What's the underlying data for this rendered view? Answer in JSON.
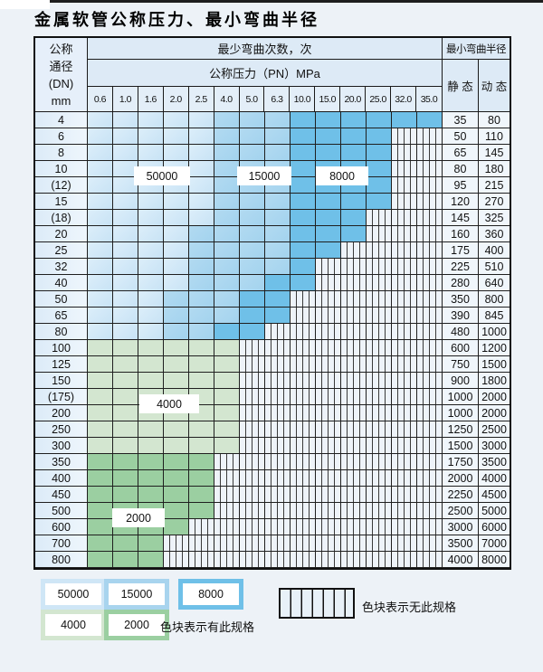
{
  "title": "金属软管公称压力、最小弯曲半径",
  "table": {
    "corner_lines": [
      "公称",
      "通径",
      "(DN)",
      "mm"
    ],
    "bend_times_header": "最少弯曲次数，次",
    "pressure_header": "公称压力（PN）MPa",
    "radius_header": "最小弯曲半径",
    "static_header": "静 态",
    "dynamic_header": "动 态",
    "pressures": [
      "0.6",
      "1.0",
      "1.6",
      "2.0",
      "2.5",
      "4.0",
      "5.0",
      "6.3",
      "10.0",
      "15.0",
      "20.0",
      "25.0",
      "32.0",
      "35.0"
    ],
    "rows": [
      {
        "dn": "4",
        "static": "35",
        "dynamic": "80",
        "zone": "blue",
        "light_end": 5,
        "dark_start": 9,
        "colored_end": 14
      },
      {
        "dn": "6",
        "static": "50",
        "dynamic": "110",
        "zone": "blue",
        "light_end": 5,
        "dark_start": 9,
        "colored_end": 12
      },
      {
        "dn": "8",
        "static": "65",
        "dynamic": "145",
        "zone": "blue",
        "light_end": 5,
        "dark_start": 9,
        "colored_end": 12
      },
      {
        "dn": "10",
        "static": "80",
        "dynamic": "180",
        "zone": "blue",
        "light_end": 5,
        "dark_start": 9,
        "colored_end": 12
      },
      {
        "dn": "(12)",
        "static": "95",
        "dynamic": "215",
        "zone": "blue",
        "light_end": 5,
        "dark_start": 9,
        "colored_end": 12
      },
      {
        "dn": "15",
        "static": "120",
        "dynamic": "270",
        "zone": "blue",
        "light_end": 5,
        "dark_start": 9,
        "colored_end": 12
      },
      {
        "dn": "(18)",
        "static": "145",
        "dynamic": "325",
        "zone": "blue",
        "light_end": 5,
        "dark_start": 9,
        "colored_end": 11
      },
      {
        "dn": "20",
        "static": "160",
        "dynamic": "360",
        "zone": "blue",
        "light_end": 4,
        "dark_start": 9,
        "colored_end": 11
      },
      {
        "dn": "25",
        "static": "175",
        "dynamic": "400",
        "zone": "blue",
        "light_end": 4,
        "dark_start": 9,
        "colored_end": 10
      },
      {
        "dn": "32",
        "static": "225",
        "dynamic": "510",
        "zone": "blue",
        "light_end": 4,
        "dark_start": 9,
        "colored_end": 9
      },
      {
        "dn": "40",
        "static": "280",
        "dynamic": "640",
        "zone": "blue",
        "light_end": 4,
        "dark_start": 8,
        "colored_end": 9
      },
      {
        "dn": "50",
        "static": "350",
        "dynamic": "800",
        "zone": "blue",
        "light_end": 3,
        "dark_start": 7,
        "colored_end": 8
      },
      {
        "dn": "65",
        "static": "390",
        "dynamic": "845",
        "zone": "blue",
        "light_end": 3,
        "dark_start": 7,
        "colored_end": 8
      },
      {
        "dn": "80",
        "static": "480",
        "dynamic": "1000",
        "zone": "blue",
        "light_end": 3,
        "dark_start": 6,
        "colored_end": 7
      },
      {
        "dn": "100",
        "static": "600",
        "dynamic": "1200",
        "zone": "green-light",
        "colored_end": 6
      },
      {
        "dn": "125",
        "static": "750",
        "dynamic": "1500",
        "zone": "green-light",
        "colored_end": 6
      },
      {
        "dn": "150",
        "static": "900",
        "dynamic": "1800",
        "zone": "green-light",
        "colored_end": 6
      },
      {
        "dn": "(175)",
        "static": "1000",
        "dynamic": "2000",
        "zone": "green-light",
        "colored_end": 6
      },
      {
        "dn": "200",
        "static": "1000",
        "dynamic": "2000",
        "zone": "green-light",
        "colored_end": 6
      },
      {
        "dn": "250",
        "static": "1250",
        "dynamic": "2500",
        "zone": "green-light",
        "colored_end": 6
      },
      {
        "dn": "300",
        "static": "1500",
        "dynamic": "3000",
        "zone": "green-light",
        "colored_end": 6
      },
      {
        "dn": "350",
        "static": "1750",
        "dynamic": "3500",
        "zone": "green-dark",
        "colored_end": 5
      },
      {
        "dn": "400",
        "static": "2000",
        "dynamic": "4000",
        "zone": "green-dark",
        "colored_end": 5
      },
      {
        "dn": "450",
        "static": "2250",
        "dynamic": "4500",
        "zone": "green-dark",
        "colored_end": 5
      },
      {
        "dn": "500",
        "static": "2500",
        "dynamic": "5000",
        "zone": "green-dark",
        "colored_end": 5
      },
      {
        "dn": "600",
        "static": "3000",
        "dynamic": "6000",
        "zone": "green-dark",
        "colored_end": 4
      },
      {
        "dn": "700",
        "static": "3500",
        "dynamic": "7000",
        "zone": "green-dark",
        "colored_end": 3
      },
      {
        "dn": "800",
        "static": "4000",
        "dynamic": "8000",
        "zone": "green-dark",
        "colored_end": 3
      }
    ]
  },
  "overlays": [
    {
      "text": "50000"
    },
    {
      "text": "15000"
    },
    {
      "text": "8000"
    },
    {
      "text": "4000"
    },
    {
      "text": "2000"
    }
  ],
  "legend": {
    "items": [
      {
        "label": "50000",
        "color": "#cfe6f6"
      },
      {
        "label": "15000",
        "color": "#a8d4ee"
      },
      {
        "label": "8000",
        "color": "#6fc0e8"
      },
      {
        "label": "4000",
        "color": "#d3e6d0"
      },
      {
        "label": "2000",
        "color": "#9bcfa1"
      }
    ],
    "has_spec_note": "色块表示有此规格",
    "no_spec_note": "色块表示无此规格"
  },
  "colors": {
    "zone_50000": "#cce5f5",
    "zone_15000": "#a3d3ee",
    "zone_8000": "#6fc0e8",
    "zone_4000": "#d3e6d0",
    "zone_2000": "#9bcfa1",
    "grid_line": "#1f1f1f",
    "header_bg": "#ddeaf6",
    "page_bg": "#edf2f7"
  }
}
